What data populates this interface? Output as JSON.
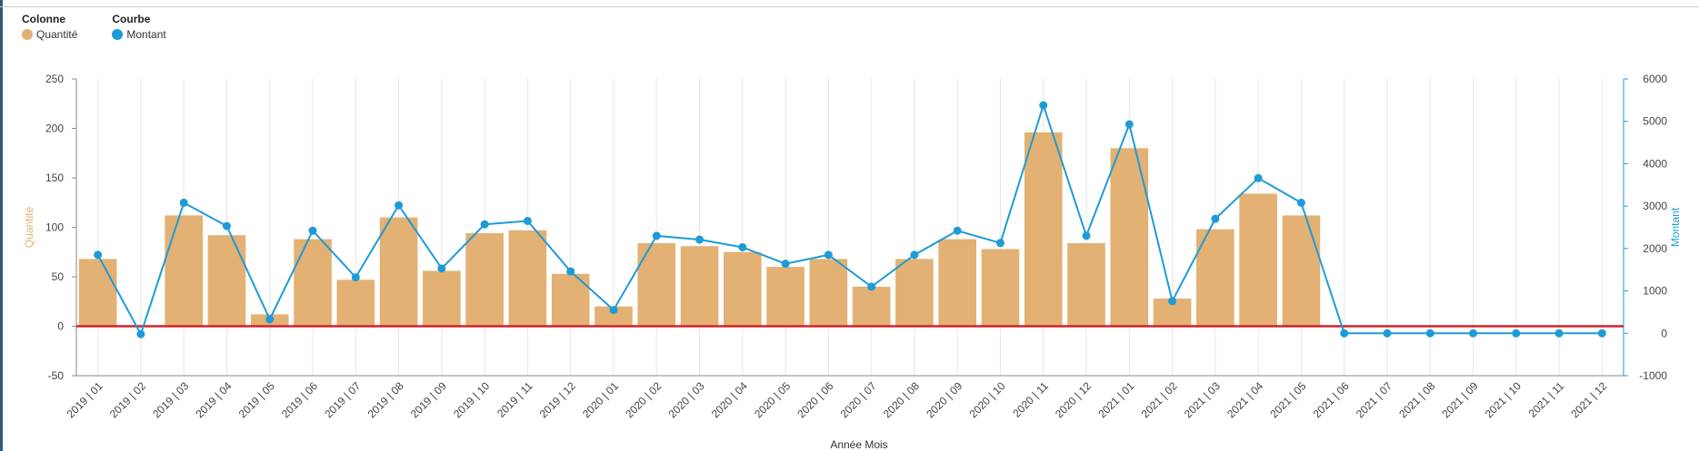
{
  "legend": {
    "column_title": "Colonne",
    "column_item": "Quantité",
    "curve_title": "Courbe",
    "curve_item": "Montant"
  },
  "colors": {
    "bar": "#e2b173",
    "line": "#1e9bd7",
    "zero_line": "#d0232c",
    "grid": "#e6e6e6",
    "axis": "#8a8a8a"
  },
  "chart_data": {
    "type": "bar",
    "xlabel": "Année Mois",
    "ylabel": "Quantité",
    "y2label": "Montant",
    "ylim": [
      -50,
      250
    ],
    "y2lim": [
      -1000,
      6000
    ],
    "yticks": [
      "250",
      "200",
      "150",
      "100",
      "50",
      "0",
      "-50"
    ],
    "y2ticks": [
      "6000",
      "5000",
      "4000",
      "3000",
      "2000",
      "1000",
      "0",
      "-1000"
    ],
    "categories": [
      "2019 | 01",
      "2019 | 02",
      "2019 | 03",
      "2019 | 04",
      "2019 | 05",
      "2019 | 06",
      "2019 | 07",
      "2019 | 08",
      "2019 | 09",
      "2019 | 10",
      "2019 | 11",
      "2019 | 12",
      "2020 | 01",
      "2020 | 02",
      "2020 | 03",
      "2020 | 04",
      "2020 | 05",
      "2020 | 06",
      "2020 | 07",
      "2020 | 08",
      "2020 | 09",
      "2020 | 10",
      "2020 | 11",
      "2020 | 12",
      "2021 | 01",
      "2021 | 02",
      "2021 | 03",
      "2021 | 04",
      "2021 | 05",
      "2021 | 06",
      "2021 | 07",
      "2021 | 08",
      "2021 | 09",
      "2021 | 10",
      "2021 | 11",
      "2021 | 12"
    ],
    "series": [
      {
        "name": "Quantité",
        "type": "bar",
        "axis": "left",
        "values": [
          68,
          0,
          112,
          92,
          12,
          88,
          47,
          110,
          56,
          94,
          97,
          53,
          20,
          84,
          81,
          75,
          60,
          68,
          40,
          68,
          88,
          78,
          196,
          84,
          180,
          28,
          98,
          134,
          112,
          null,
          null,
          null,
          null,
          null,
          null,
          null
        ]
      },
      {
        "name": "Montant",
        "type": "line",
        "axis": "right",
        "values": [
          1850,
          -20,
          3080,
          2530,
          330,
          2420,
          1320,
          3020,
          1530,
          2570,
          2650,
          1460,
          550,
          2300,
          2210,
          2030,
          1640,
          1850,
          1100,
          1850,
          2420,
          2130,
          5380,
          2300,
          4930,
          760,
          2700,
          3660,
          3080,
          0,
          0,
          0,
          0,
          0,
          0,
          0
        ]
      }
    ]
  }
}
